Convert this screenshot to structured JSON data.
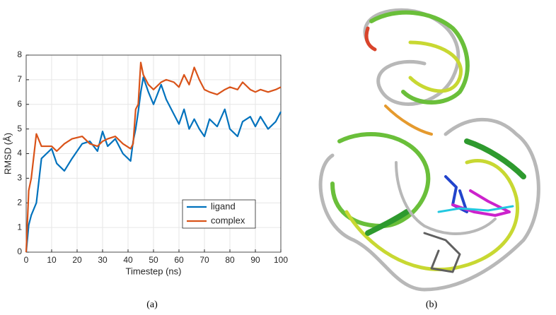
{
  "chart_data": {
    "type": "line",
    "xlabel": "Timestep (ns)",
    "ylabel": "RMSD (Å)",
    "x": [
      0,
      1,
      2,
      4,
      6,
      8,
      10,
      12,
      15,
      18,
      22,
      25,
      28,
      30,
      32,
      35,
      38,
      41,
      42,
      43,
      44,
      45,
      46,
      48,
      50,
      53,
      55,
      58,
      60,
      62,
      64,
      66,
      68,
      70,
      72,
      75,
      78,
      80,
      83,
      85,
      88,
      90,
      92,
      95,
      98,
      100
    ],
    "series": [
      {
        "name": "ligand",
        "color": "#0072bd",
        "values": [
          0,
          1.1,
          1.5,
          2.0,
          3.8,
          4.0,
          4.2,
          3.6,
          3.3,
          3.8,
          4.4,
          4.5,
          4.1,
          4.9,
          4.3,
          4.6,
          4.0,
          3.7,
          4.5,
          5.0,
          5.7,
          6.5,
          7.1,
          6.5,
          6.0,
          6.8,
          6.2,
          5.6,
          5.2,
          5.8,
          5.0,
          5.4,
          5.0,
          4.7,
          5.4,
          5.1,
          5.8,
          5.0,
          4.7,
          5.3,
          5.5,
          5.1,
          5.5,
          5.0,
          5.3,
          5.7
        ]
      },
      {
        "name": "complex",
        "color": "#d95319",
        "values": [
          0,
          2.5,
          3.0,
          4.8,
          4.3,
          4.3,
          4.3,
          4.1,
          4.4,
          4.6,
          4.7,
          4.4,
          4.3,
          4.5,
          4.6,
          4.7,
          4.4,
          4.2,
          4.4,
          5.8,
          6.0,
          7.7,
          7.2,
          6.8,
          6.6,
          6.9,
          7.0,
          6.9,
          6.7,
          7.2,
          6.8,
          7.5,
          7.0,
          6.6,
          6.5,
          6.4,
          6.6,
          6.7,
          6.6,
          6.9,
          6.6,
          6.5,
          6.6,
          6.5,
          6.6,
          6.7
        ]
      }
    ],
    "xlim": [
      0,
      100
    ],
    "xticks": [
      0,
      10,
      20,
      30,
      40,
      50,
      60,
      70,
      80,
      90,
      100
    ],
    "ylim": [
      0,
      8
    ],
    "yticks": [
      0,
      1,
      2,
      3,
      4,
      5,
      6,
      7,
      8
    ],
    "grid": true,
    "legend": "lower right"
  },
  "panel_labels": [
    "(a)",
    "(b)"
  ]
}
